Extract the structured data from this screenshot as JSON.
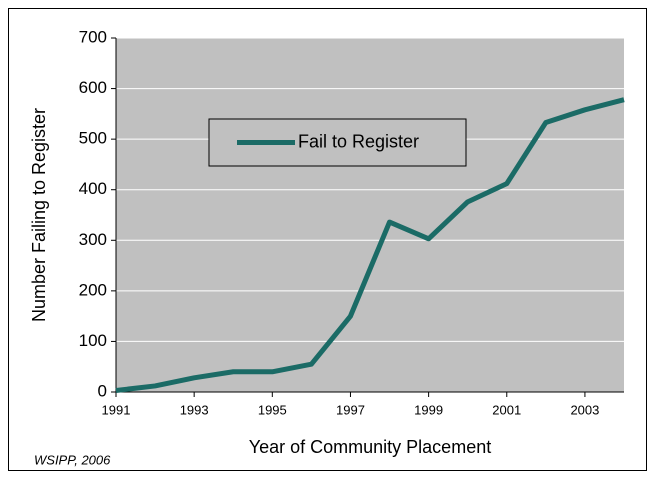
{
  "chart_data": {
    "type": "line",
    "x": [
      1991,
      1992,
      1993,
      1994,
      1995,
      1996,
      1997,
      1998,
      1999,
      2000,
      2001,
      2002,
      2003,
      2004
    ],
    "series": [
      {
        "name": "Fail to Register",
        "color": "#1b6b66",
        "values": [
          3,
          12,
          28,
          40,
          40,
          55,
          150,
          336,
          303,
          376,
          412,
          533,
          558,
          578
        ]
      }
    ],
    "xlim": [
      1991,
      2004
    ],
    "xticks": [
      1991,
      1993,
      1995,
      1997,
      1999,
      2001,
      2003
    ],
    "ylim": [
      0,
      700
    ],
    "yticks": [
      0,
      100,
      200,
      300,
      400,
      500,
      600,
      700
    ],
    "grid": true,
    "legend": "upper left",
    "xlabel": "Year of Community Placement",
    "ylabel": "Number Failing to Register",
    "source": "WSIPP, 2006"
  }
}
